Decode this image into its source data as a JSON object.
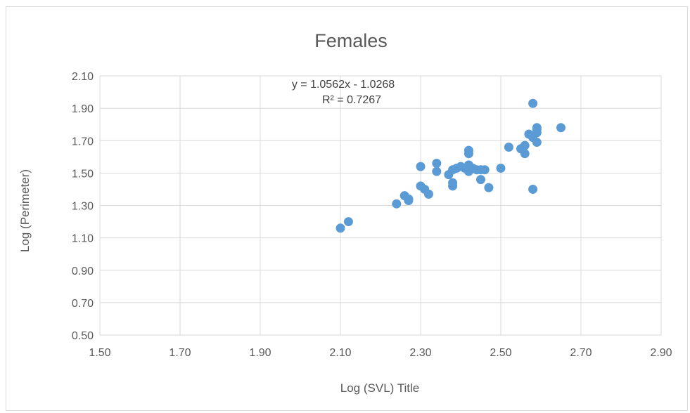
{
  "chart_data": {
    "type": "scatter",
    "title": "Females",
    "xlabel": "Log (SVL) Title",
    "ylabel": "Log (Perimeter)",
    "xlim": [
      1.5,
      2.9
    ],
    "ylim": [
      0.5,
      2.1
    ],
    "xticks": [
      "1.50",
      "1.70",
      "1.90",
      "2.10",
      "2.30",
      "2.50",
      "2.70",
      "2.90"
    ],
    "yticks": [
      "0.50",
      "0.70",
      "0.90",
      "1.10",
      "1.30",
      "1.50",
      "1.70",
      "1.90",
      "2.10"
    ],
    "grid": true,
    "marker_color": "#5b9bd5",
    "trendline": {
      "equation": "y = 1.0562x - 1.0268",
      "r_squared": "R² = 0.7267"
    },
    "series": [
      {
        "points": [
          [
            2.1,
            1.16
          ],
          [
            2.12,
            1.2
          ],
          [
            2.24,
            1.31
          ],
          [
            2.26,
            1.36
          ],
          [
            2.27,
            1.34
          ],
          [
            2.27,
            1.33
          ],
          [
            2.3,
            1.42
          ],
          [
            2.3,
            1.54
          ],
          [
            2.31,
            1.4
          ],
          [
            2.32,
            1.37
          ],
          [
            2.34,
            1.56
          ],
          [
            2.34,
            1.51
          ],
          [
            2.37,
            1.49
          ],
          [
            2.38,
            1.44
          ],
          [
            2.38,
            1.42
          ],
          [
            2.38,
            1.52
          ],
          [
            2.39,
            1.53
          ],
          [
            2.4,
            1.54
          ],
          [
            2.41,
            1.53
          ],
          [
            2.42,
            1.51
          ],
          [
            2.42,
            1.55
          ],
          [
            2.42,
            1.62
          ],
          [
            2.42,
            1.64
          ],
          [
            2.43,
            1.53
          ],
          [
            2.44,
            1.52
          ],
          [
            2.45,
            1.46
          ],
          [
            2.45,
            1.52
          ],
          [
            2.46,
            1.52
          ],
          [
            2.47,
            1.41
          ],
          [
            2.5,
            1.53
          ],
          [
            2.52,
            1.66
          ],
          [
            2.55,
            1.65
          ],
          [
            2.56,
            1.67
          ],
          [
            2.56,
            1.62
          ],
          [
            2.57,
            1.74
          ],
          [
            2.58,
            1.4
          ],
          [
            2.58,
            1.93
          ],
          [
            2.58,
            1.72
          ],
          [
            2.59,
            1.78
          ],
          [
            2.59,
            1.75
          ],
          [
            2.59,
            1.77
          ],
          [
            2.59,
            1.69
          ],
          [
            2.65,
            1.78
          ]
        ]
      }
    ]
  }
}
